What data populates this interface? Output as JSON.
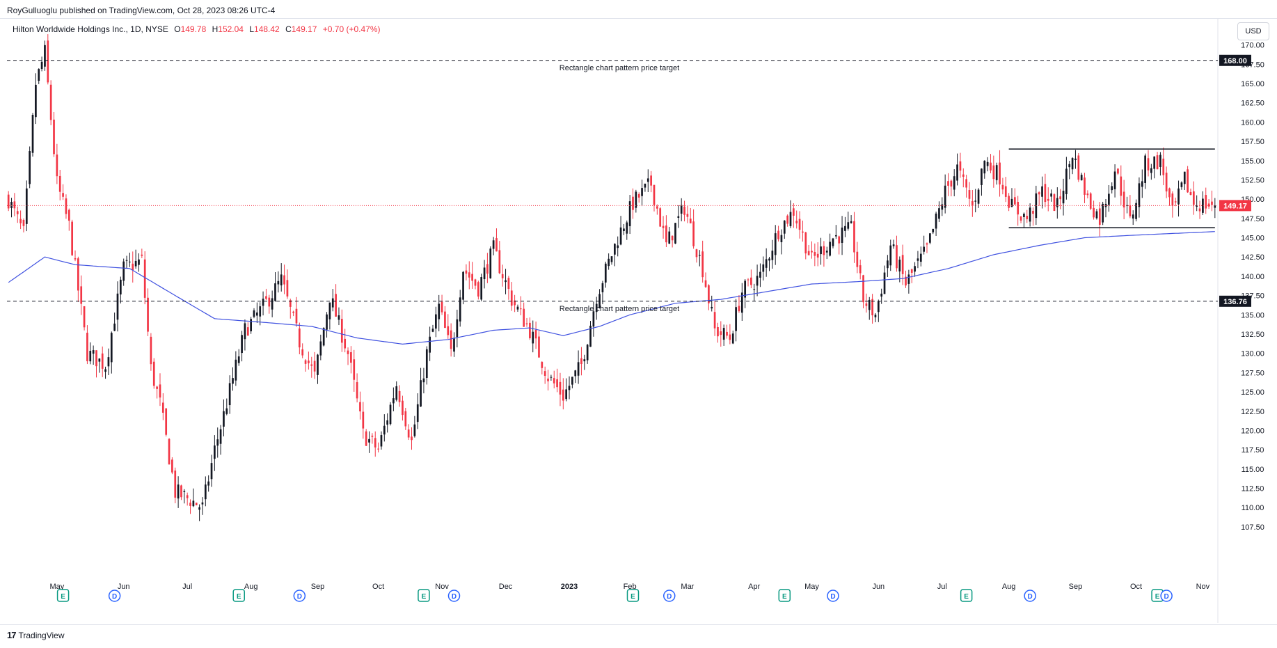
{
  "header": {
    "published": "RoyGulluoglu published on TradingView.com, Oct 28, 2023 08:26 UTC-4"
  },
  "legend": {
    "symbol": "Hilton Worldwide Holdings Inc., 1D, NYSE",
    "open_label": "O",
    "open": "149.78",
    "high_label": "H",
    "high": "152.04",
    "low_label": "L",
    "low": "148.42",
    "close_label": "C",
    "close": "149.17",
    "change": "+0.70 (+0.47%)"
  },
  "currency": "USD",
  "footer": {
    "logo": "17",
    "brand": "TradingView"
  },
  "colors": {
    "up": "#131722",
    "down": "#f23645",
    "ma": "#3f51e0",
    "accent": "#f23645"
  },
  "chart_data": {
    "type": "candlestick",
    "title": "Hilton Worldwide Holdings Inc., 1D, NYSE",
    "ylim": [
      106.5,
      171.5
    ],
    "y_ticks": [
      "170.00",
      "167.50",
      "165.00",
      "162.50",
      "160.00",
      "157.50",
      "155.00",
      "152.50",
      "150.00",
      "147.50",
      "145.00",
      "142.50",
      "140.00",
      "137.50",
      "135.00",
      "132.50",
      "130.00",
      "127.50",
      "125.00",
      "122.50",
      "120.00",
      "117.50",
      "115.00",
      "112.50",
      "110.00",
      "107.50"
    ],
    "x_labels": [
      {
        "label": "May",
        "index": 16
      },
      {
        "label": "Jun",
        "index": 38
      },
      {
        "label": "Jul",
        "index": 59
      },
      {
        "label": "Aug",
        "index": 80
      },
      {
        "label": "Sep",
        "index": 102
      },
      {
        "label": "Oct",
        "index": 122
      },
      {
        "label": "Nov",
        "index": 143
      },
      {
        "label": "Dec",
        "index": 164
      },
      {
        "label": "2023",
        "index": 185
      },
      {
        "label": "Feb",
        "index": 205
      },
      {
        "label": "Mar",
        "index": 224
      },
      {
        "label": "Apr",
        "index": 246
      },
      {
        "label": "May",
        "index": 265
      },
      {
        "label": "Jun",
        "index": 287
      },
      {
        "label": "Jul",
        "index": 308
      },
      {
        "label": "Aug",
        "index": 330
      },
      {
        "label": "Sep",
        "index": 352
      },
      {
        "label": "Oct",
        "index": 372
      },
      {
        "label": "Nov",
        "index": 394
      }
    ],
    "num_bars": 399,
    "anchors": [
      [
        0,
        150.0
      ],
      [
        5,
        145.5
      ],
      [
        9,
        165.0
      ],
      [
        12,
        169.0
      ],
      [
        16,
        152.0
      ],
      [
        20,
        146.5
      ],
      [
        26,
        130.0
      ],
      [
        32,
        128.5
      ],
      [
        38,
        141.0
      ],
      [
        44,
        142.0
      ],
      [
        47,
        128.0
      ],
      [
        50,
        123.5
      ],
      [
        55,
        112.0
      ],
      [
        60,
        111.0
      ],
      [
        64,
        110.0
      ],
      [
        68,
        117.5
      ],
      [
        71,
        122.0
      ],
      [
        78,
        133.0
      ],
      [
        84,
        136.0
      ],
      [
        90,
        139.5
      ],
      [
        96,
        131.5
      ],
      [
        101,
        127.0
      ],
      [
        106,
        137.5
      ],
      [
        112,
        130.0
      ],
      [
        117,
        119.5
      ],
      [
        122,
        117.5
      ],
      [
        128,
        126.0
      ],
      [
        133,
        118.5
      ],
      [
        138,
        130.0
      ],
      [
        142,
        136.0
      ],
      [
        146,
        130.0
      ],
      [
        150,
        141.0
      ],
      [
        155,
        138.5
      ],
      [
        160,
        143.5
      ],
      [
        166,
        137.0
      ],
      [
        172,
        133.0
      ],
      [
        178,
        127.0
      ],
      [
        183,
        124.5
      ],
      [
        189,
        128.5
      ],
      [
        194,
        137.5
      ],
      [
        201,
        145.0
      ],
      [
        206,
        149.5
      ],
      [
        212,
        152.0
      ],
      [
        217,
        144.0
      ],
      [
        223,
        149.0
      ],
      [
        229,
        141.0
      ],
      [
        233,
        133.0
      ],
      [
        238,
        132.0
      ],
      [
        242,
        138.0
      ],
      [
        248,
        140.0
      ],
      [
        254,
        146.0
      ],
      [
        259,
        148.5
      ],
      [
        265,
        142.0
      ],
      [
        272,
        145.0
      ],
      [
        278,
        146.0
      ],
      [
        282,
        137.0
      ],
      [
        286,
        135.0
      ],
      [
        291,
        144.0
      ],
      [
        296,
        139.0
      ],
      [
        303,
        143.5
      ],
      [
        309,
        151.0
      ],
      [
        313,
        154.0
      ],
      [
        318,
        149.0
      ],
      [
        322,
        155.0
      ],
      [
        327,
        153.0
      ],
      [
        331,
        149.0
      ],
      [
        336,
        147.5
      ],
      [
        341,
        151.0
      ],
      [
        346,
        149.0
      ],
      [
        351,
        156.0
      ],
      [
        356,
        150.0
      ],
      [
        360,
        147.5
      ],
      [
        365,
        154.0
      ],
      [
        370,
        147.0
      ],
      [
        375,
        154.5
      ],
      [
        380,
        155.0
      ],
      [
        384,
        148.0
      ],
      [
        388,
        152.5
      ],
      [
        391,
        149.5
      ],
      [
        398,
        149.2
      ]
    ],
    "close": 149.17,
    "series": [
      {
        "name": "",
        "type": "moving-average",
        "anchors": [
          [
            0,
            139.2
          ],
          [
            12,
            142.5
          ],
          [
            22,
            141.5
          ],
          [
            40,
            141.0
          ],
          [
            55,
            137.5
          ],
          [
            68,
            134.5
          ],
          [
            85,
            134.0
          ],
          [
            100,
            133.5
          ],
          [
            115,
            132.0
          ],
          [
            130,
            131.2
          ],
          [
            145,
            131.8
          ],
          [
            160,
            133.0
          ],
          [
            172,
            133.3
          ],
          [
            183,
            132.3
          ],
          [
            195,
            133.5
          ],
          [
            205,
            135.0
          ],
          [
            220,
            136.5
          ],
          [
            235,
            137.0
          ],
          [
            250,
            138.0
          ],
          [
            265,
            139.0
          ],
          [
            280,
            139.3
          ],
          [
            295,
            139.7
          ],
          [
            310,
            141.0
          ],
          [
            325,
            142.8
          ],
          [
            340,
            144.0
          ],
          [
            355,
            145.0
          ],
          [
            370,
            145.3
          ],
          [
            398,
            145.8
          ]
        ]
      }
    ],
    "horizontal_levels": [
      {
        "value": 168.0,
        "label": "168.00",
        "note": "Rectangle chart pattern price target",
        "style": "dashed"
      },
      {
        "value": 136.76,
        "label": "136.76",
        "note": "Rectangle chart pattern price target",
        "style": "dashed"
      }
    ],
    "rectangle": {
      "top": 156.5,
      "bottom": 146.3,
      "from_index": 330,
      "to_index": 398
    },
    "events": [
      {
        "type": "E",
        "index": 18
      },
      {
        "type": "D",
        "index": 35
      },
      {
        "type": "E",
        "index": 76
      },
      {
        "type": "D",
        "index": 96
      },
      {
        "type": "E",
        "index": 137
      },
      {
        "type": "D",
        "index": 147
      },
      {
        "type": "E",
        "index": 206
      },
      {
        "type": "D",
        "index": 218
      },
      {
        "type": "E",
        "index": 256
      },
      {
        "type": "D",
        "index": 272
      },
      {
        "type": "E",
        "index": 316
      },
      {
        "type": "D",
        "index": 337
      },
      {
        "type": "E",
        "index": 379
      },
      {
        "type": "D",
        "index": 382
      }
    ]
  }
}
